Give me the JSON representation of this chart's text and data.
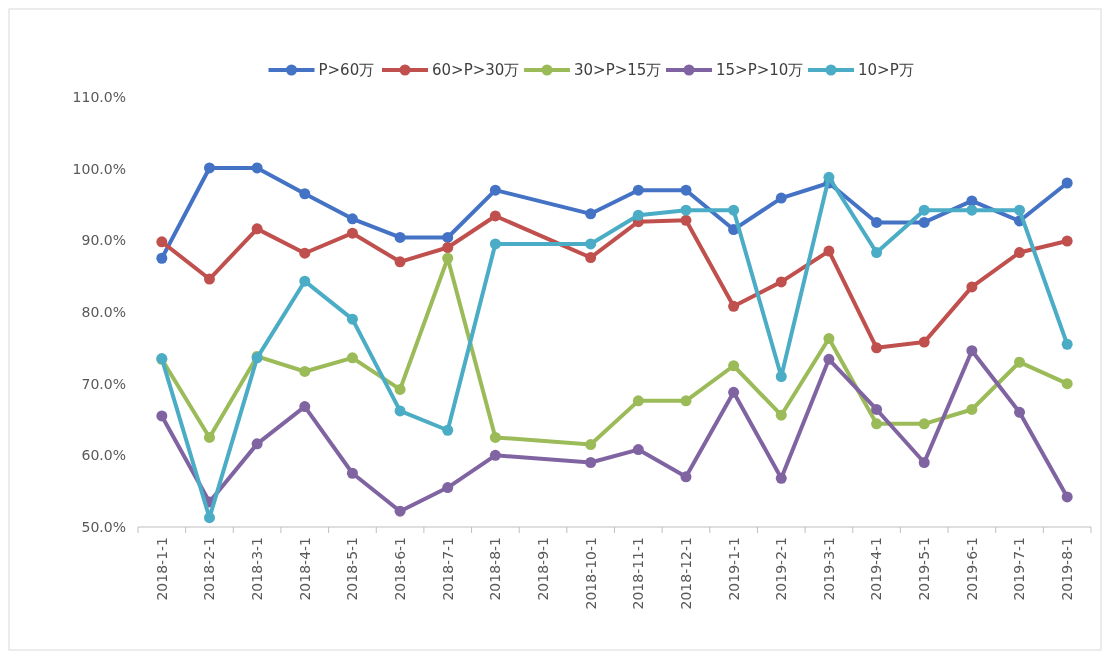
{
  "chart_data": {
    "type": "line",
    "categories": [
      "2018-1-1",
      "2018-2-1",
      "2018-3-1",
      "2018-4-1",
      "2018-5-1",
      "2018-6-1",
      "2018-7-1",
      "2018-8-1",
      "2018-9-1",
      "2018-10-1",
      "2018-11-1",
      "2018-12-1",
      "2019-1-1",
      "2019-2-1",
      "2019-3-1",
      "2019-4-1",
      "2019-5-1",
      "2019-6-1",
      "2019-7-1",
      "2019-8-1"
    ],
    "series": [
      {
        "name": "P>60万",
        "color": "#4472c4",
        "values": [
          87.5,
          100.1,
          100.1,
          96.5,
          93,
          90.4,
          90.4,
          97,
          null,
          93.7,
          97,
          97,
          91.5,
          95.9,
          98,
          92.5,
          92.5,
          95.5,
          92.7,
          98
        ]
      },
      {
        "name": "60>P>30万",
        "color": "#c0504d",
        "values": [
          89.8,
          84.6,
          91.6,
          88.2,
          91,
          87,
          89,
          93.4,
          null,
          87.6,
          92.6,
          92.8,
          80.8,
          84.2,
          88.5,
          75,
          75.8,
          83.5,
          88.3,
          89.9
        ]
      },
      {
        "name": "30>P>15万",
        "color": "#9bbb59",
        "values": [
          73.4,
          62.5,
          73.8,
          71.7,
          73.6,
          69.2,
          87.5,
          62.5,
          null,
          61.5,
          67.6,
          67.6,
          72.5,
          65.6,
          76.3,
          64.4,
          64.4,
          66.4,
          73,
          70
        ]
      },
      {
        "name": "15>P>10万",
        "color": "#8064a2",
        "values": [
          65.5,
          53.5,
          61.6,
          66.8,
          57.5,
          52.2,
          55.5,
          60,
          null,
          59,
          60.8,
          57,
          68.8,
          56.8,
          73.4,
          66.4,
          59,
          74.6,
          66,
          54.2
        ]
      },
      {
        "name": "10>P万",
        "color": "#4bacc6",
        "values": [
          73.5,
          51.3,
          73.6,
          84.3,
          79,
          66.2,
          63.5,
          89.5,
          null,
          89.5,
          93.5,
          94.2,
          94.2,
          71,
          98.8,
          88.3,
          94.2,
          94.2,
          94.2,
          75.5
        ]
      }
    ],
    "ylim": [
      50,
      110
    ],
    "yticks": [
      {
        "value": 50,
        "label": "50.0%"
      },
      {
        "value": 60,
        "label": "60.0%"
      },
      {
        "value": 70,
        "label": "70.0%"
      },
      {
        "value": 80,
        "label": "80.0%"
      },
      {
        "value": 90,
        "label": "90.0%"
      },
      {
        "value": 100,
        "label": "100.0%"
      },
      {
        "value": 110,
        "label": "110.0%"
      }
    ],
    "legend": "top",
    "marker": "circle",
    "line_style": "solid"
  }
}
